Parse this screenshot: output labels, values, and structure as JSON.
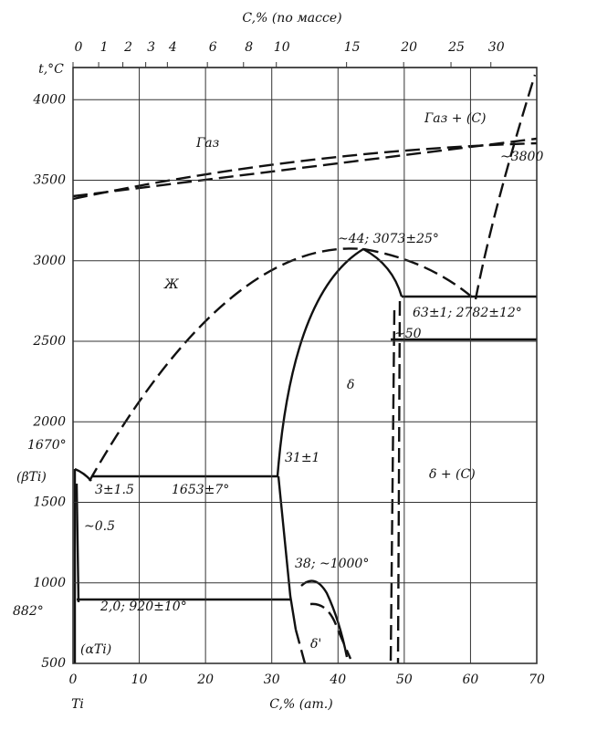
{
  "diagram": {
    "y_axis": {
      "label": "t,°C",
      "ticks": [
        500,
        1000,
        1500,
        2000,
        2500,
        3000,
        3500,
        4000
      ],
      "lim": [
        500,
        4200
      ]
    },
    "bottom_axis": {
      "label": "C,% (ат.)",
      "ticks": [
        0,
        10,
        20,
        30,
        40,
        50,
        60,
        70
      ],
      "lim": [
        0,
        70
      ]
    },
    "top_axis": {
      "label": "C,% (по массе)",
      "ticks": [
        0,
        1,
        2,
        3,
        4,
        6,
        8,
        10,
        15,
        20,
        25,
        30
      ]
    },
    "origin_label": "Ti",
    "labels": [
      "Газ",
      "Газ + (С)",
      "~3800",
      "~44; 3073±25°",
      "Ж",
      "63±1; 2782±12°",
      "~50",
      "δ",
      "1670°",
      "δ + (С)",
      "31±1",
      "(βTi)",
      "3±1.5",
      "1653±7°",
      "~0.5",
      "38; ~1000°",
      "882°",
      "2,0; 920±10°",
      "(αTi)",
      "δ'"
    ]
  }
}
